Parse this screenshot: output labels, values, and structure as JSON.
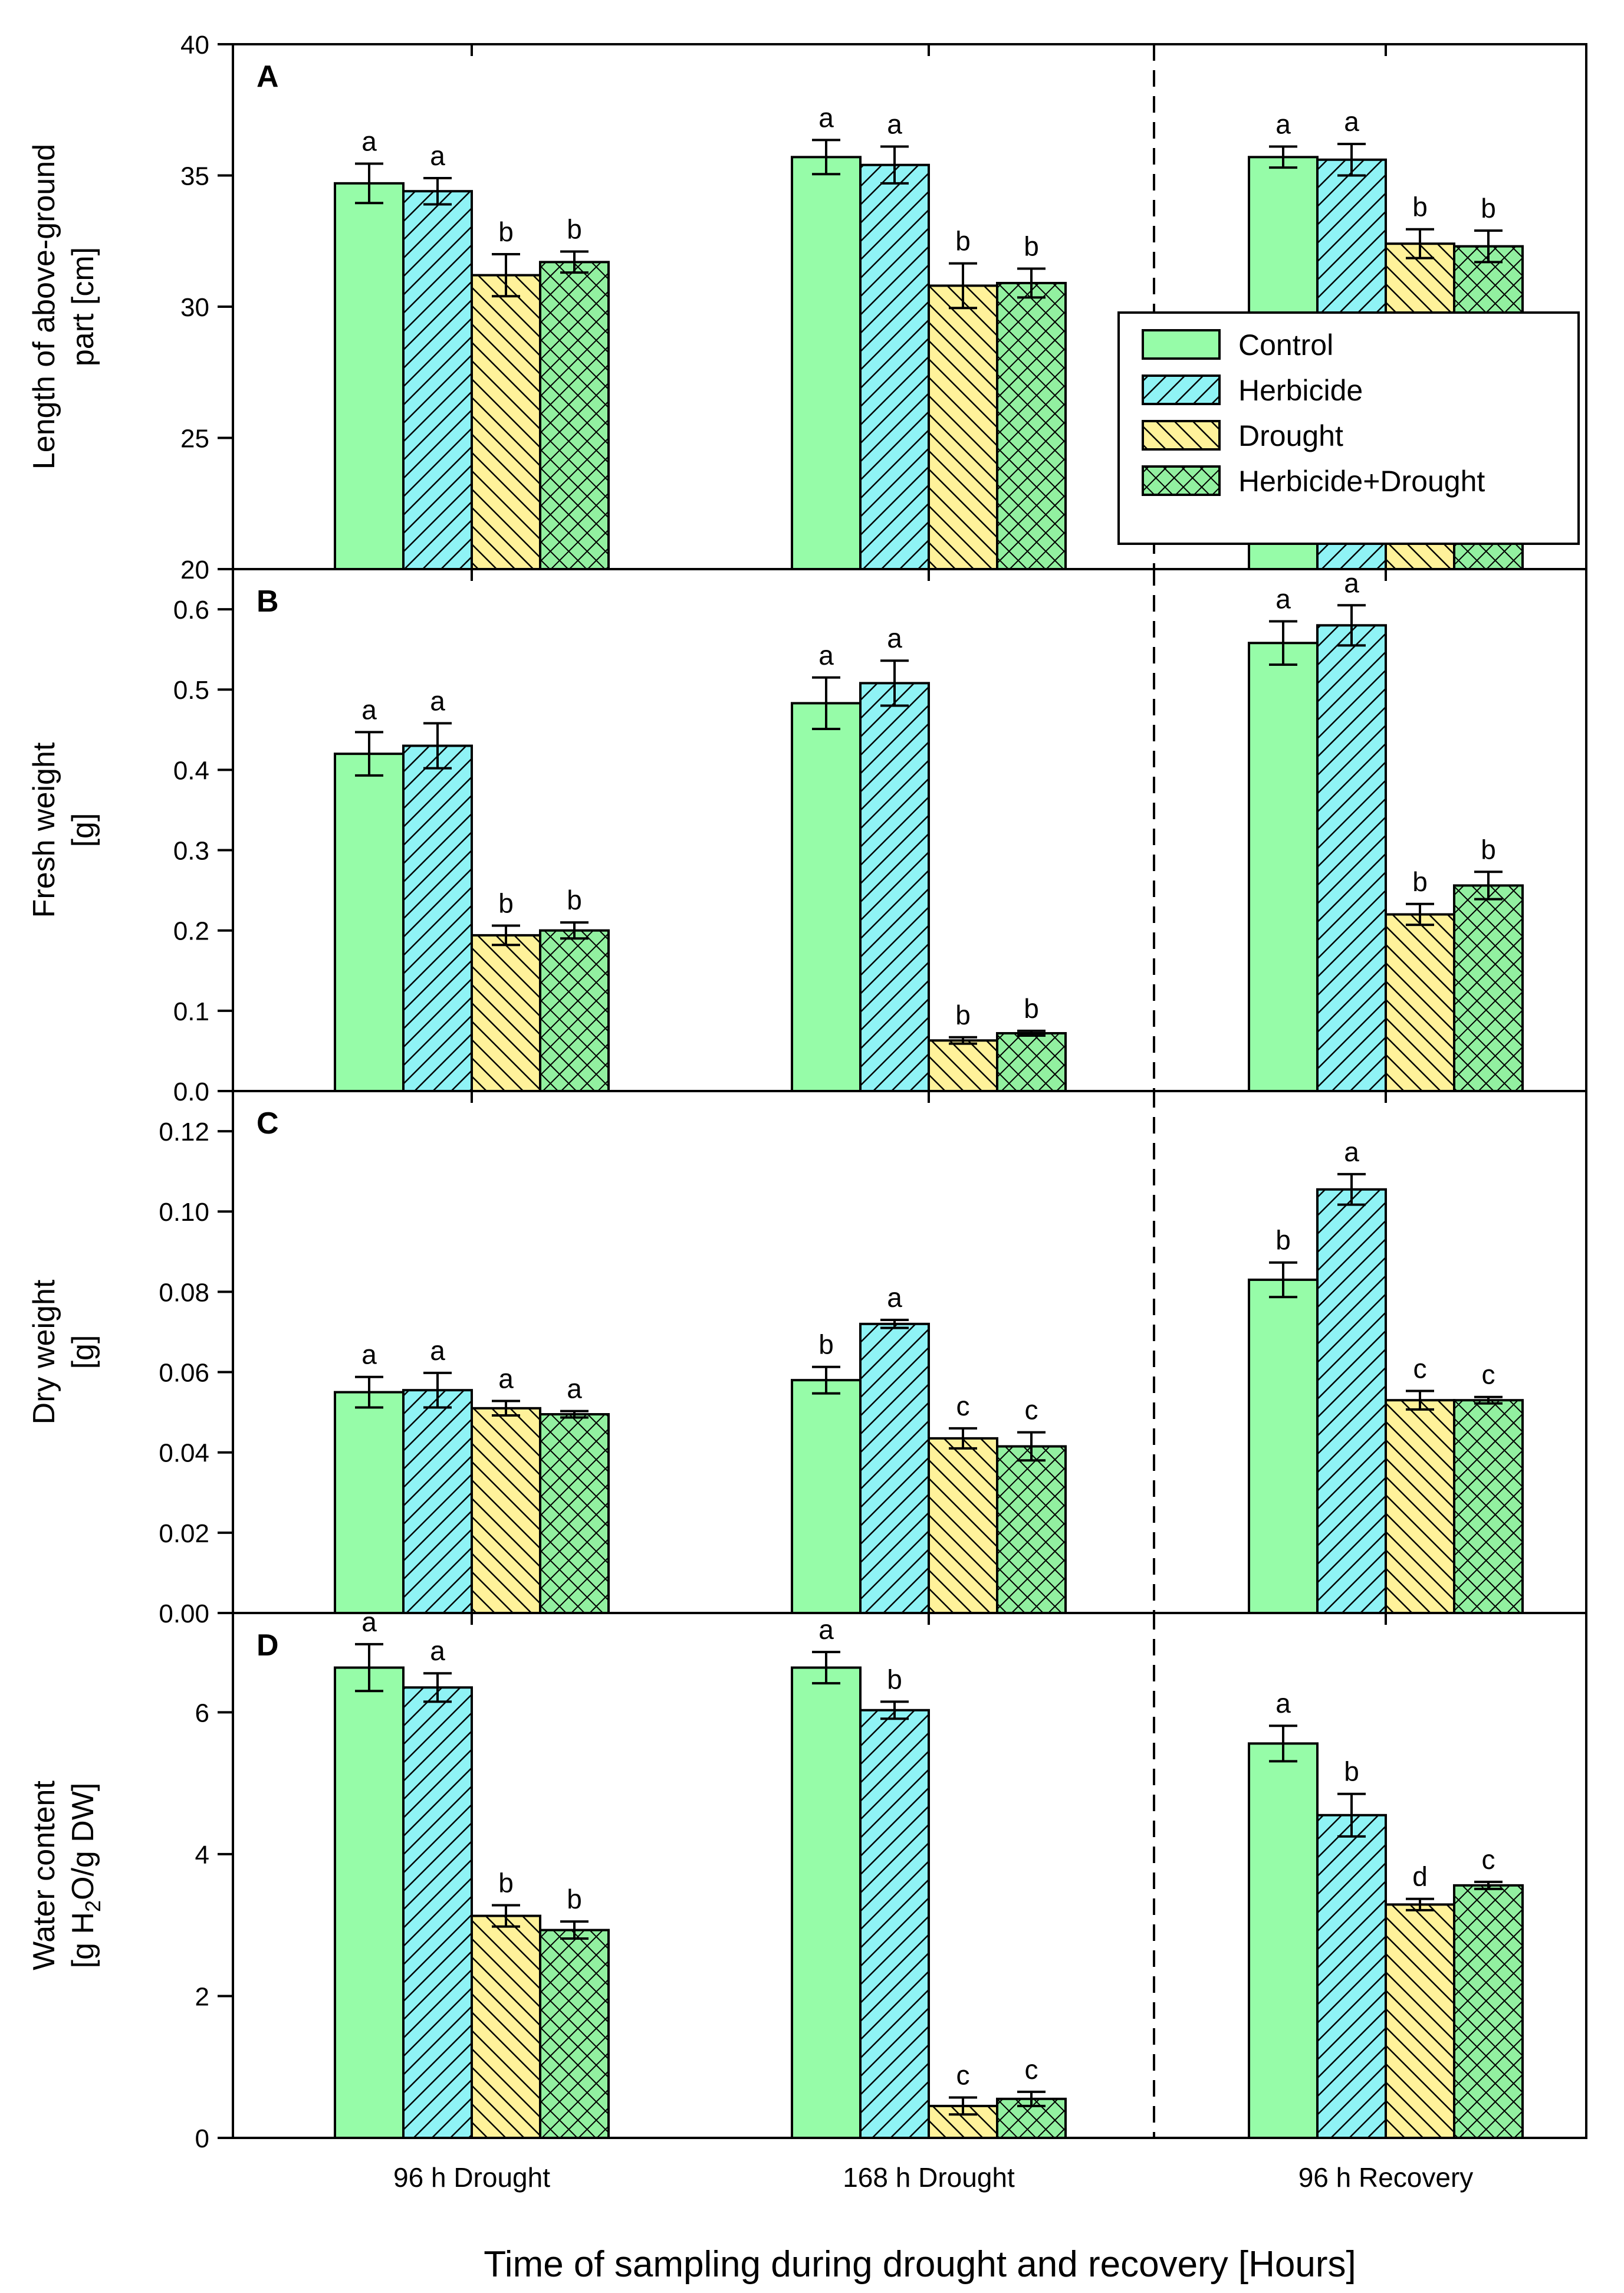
{
  "chart_data": {
    "type": "bar",
    "categories": [
      "96 h Drought",
      "168 h Drought",
      "96 h Recovery"
    ],
    "xlabel": "Time of sampling during drought and recovery [Hours]",
    "legend": {
      "placement": "top-right of panel A",
      "entries": [
        "Control",
        "Herbicide",
        "Drought",
        "Herbicide+Drought"
      ]
    },
    "series_styles": [
      {
        "name": "Control",
        "color": "#96fca8",
        "pattern": "solid"
      },
      {
        "name": "Herbicide",
        "color": "#8ff3f5",
        "pattern": "diagonal-hatch"
      },
      {
        "name": "Drought",
        "color": "#fff29a",
        "pattern": "back-diagonal-hatch"
      },
      {
        "name": "Herbicide+Drought",
        "color": "#92f0a0",
        "pattern": "crosshatch"
      }
    ],
    "dashed_divider": "between 168 h Drought and 96 h Recovery",
    "panels": [
      {
        "letter": "A",
        "ylabel_lines": [
          "Length of above-ground",
          "part [cm]"
        ],
        "ylim": [
          20,
          40
        ],
        "yticks": [
          "20",
          "25",
          "30",
          "35",
          "40"
        ],
        "series": [
          {
            "name": "Control",
            "values": [
              34.7,
              35.7,
              35.7
            ],
            "errors": [
              0.75,
              0.65,
              0.4
            ],
            "letters": [
              "a",
              "a",
              "a"
            ]
          },
          {
            "name": "Herbicide",
            "values": [
              34.4,
              35.4,
              35.6
            ],
            "errors": [
              0.5,
              0.7,
              0.6
            ],
            "letters": [
              "a",
              "a",
              "a"
            ]
          },
          {
            "name": "Drought",
            "values": [
              31.2,
              30.8,
              32.4
            ],
            "errors": [
              0.8,
              0.85,
              0.55
            ],
            "letters": [
              "b",
              "b",
              "b"
            ]
          },
          {
            "name": "Herbicide+Drought",
            "values": [
              31.7,
              30.9,
              32.3
            ],
            "errors": [
              0.4,
              0.55,
              0.6
            ],
            "letters": [
              "b",
              "b",
              "b"
            ]
          }
        ]
      },
      {
        "letter": "B",
        "ylabel_lines": [
          "Fresh weight",
          "[g]"
        ],
        "ylim": [
          0,
          0.65
        ],
        "yticks": [
          "0.0",
          "0.1",
          "0.2",
          "0.3",
          "0.4",
          "0.5",
          "0.6"
        ],
        "series": [
          {
            "name": "Control",
            "values": [
              0.42,
              0.483,
              0.558
            ],
            "errors": [
              0.027,
              0.032,
              0.027
            ],
            "letters": [
              "a",
              "a",
              "a"
            ]
          },
          {
            "name": "Herbicide",
            "values": [
              0.43,
              0.508,
              0.58
            ],
            "errors": [
              0.028,
              0.028,
              0.025
            ],
            "letters": [
              "a",
              "a",
              "a"
            ]
          },
          {
            "name": "Drought",
            "values": [
              0.194,
              0.063,
              0.22
            ],
            "errors": [
              0.012,
              0.004,
              0.013
            ],
            "letters": [
              "b",
              "b",
              "b"
            ]
          },
          {
            "name": "Herbicide+Drought",
            "values": [
              0.2,
              0.072,
              0.256
            ],
            "errors": [
              0.01,
              0.003,
              0.017
            ],
            "letters": [
              "b",
              "b",
              "b"
            ]
          }
        ]
      },
      {
        "letter": "C",
        "ylabel_lines": [
          "Dry weight",
          "[g]"
        ],
        "ylim": [
          0,
          0.13
        ],
        "yticks": [
          "0.00",
          "0.02",
          "0.04",
          "0.06",
          "0.08",
          "0.10",
          "0.12"
        ],
        "series": [
          {
            "name": "Control",
            "values": [
              0.055,
              0.058,
              0.083
            ],
            "errors": [
              0.0038,
              0.0033,
              0.0043
            ],
            "letters": [
              "a",
              "b",
              "b"
            ]
          },
          {
            "name": "Herbicide",
            "values": [
              0.0555,
              0.072,
              0.1055
            ],
            "errors": [
              0.0043,
              0.001,
              0.0038
            ],
            "letters": [
              "a",
              "a",
              "a"
            ]
          },
          {
            "name": "Drought",
            "values": [
              0.051,
              0.0435,
              0.053
            ],
            "errors": [
              0.0018,
              0.0025,
              0.0023
            ],
            "letters": [
              "a",
              "c",
              "c"
            ]
          },
          {
            "name": "Herbicide+Drought",
            "values": [
              0.0495,
              0.0415,
              0.053
            ],
            "errors": [
              0.0008,
              0.0035,
              0.0008
            ],
            "letters": [
              "a",
              "c",
              "c"
            ]
          }
        ]
      },
      {
        "letter": "D",
        "ylabel_lines": [
          "Water content",
          "[g H2O/g DW]"
        ],
        "ylim": [
          0,
          7.4
        ],
        "yticks": [
          "0",
          "2",
          "4",
          "6"
        ],
        "series": [
          {
            "name": "Control",
            "values": [
              6.63,
              6.63,
              5.56
            ],
            "errors": [
              0.33,
              0.22,
              0.25
            ],
            "letters": [
              "a",
              "a",
              "a"
            ]
          },
          {
            "name": "Herbicide",
            "values": [
              6.35,
              6.03,
              4.55
            ],
            "errors": [
              0.2,
              0.12,
              0.3
            ],
            "letters": [
              "a",
              "b",
              "b"
            ]
          },
          {
            "name": "Drought",
            "values": [
              3.13,
              0.45,
              3.29
            ],
            "errors": [
              0.15,
              0.12,
              0.08
            ],
            "letters": [
              "b",
              "c",
              "d"
            ]
          },
          {
            "name": "Herbicide+Drought",
            "values": [
              2.93,
              0.55,
              3.56
            ],
            "errors": [
              0.12,
              0.1,
              0.05
            ],
            "letters": [
              "b",
              "c",
              "c"
            ]
          }
        ]
      }
    ]
  }
}
